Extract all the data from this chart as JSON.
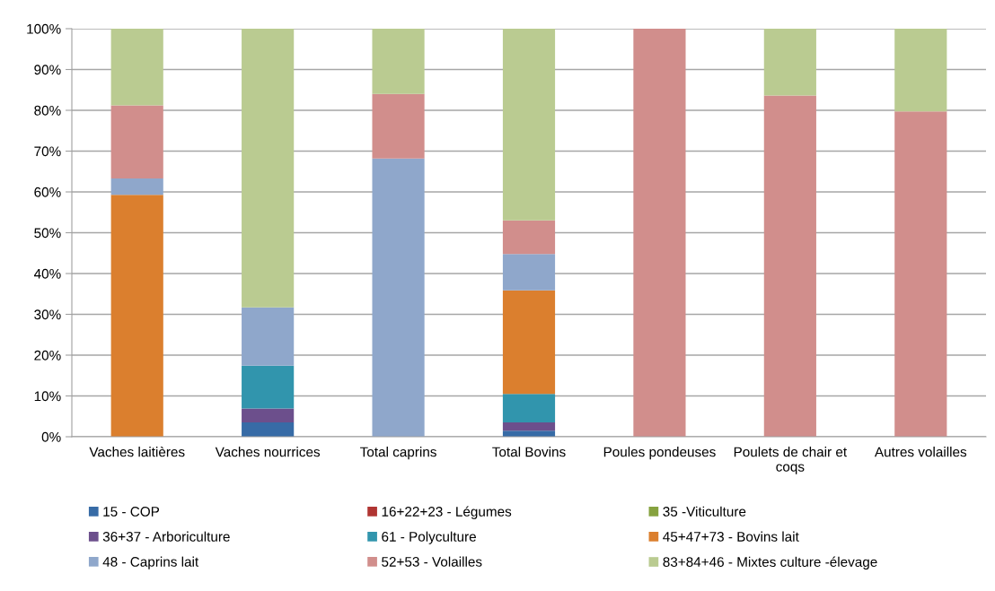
{
  "chart_data": {
    "type": "bar",
    "stacked": true,
    "categories": [
      "Vaches laitières",
      "Vaches nourrices",
      "Total caprins",
      "Total Bovins",
      "Poules pondeuses",
      "Poulets de chair et\ncoqs",
      "Autres volailles"
    ],
    "series": [
      {
        "name": "15 - COP",
        "color": "#376ba6",
        "values": [
          0,
          3.5,
          0,
          1.5,
          0,
          0,
          0
        ]
      },
      {
        "name": "16+22+23 - Légumes",
        "color": "#b03532",
        "values": [
          0,
          0,
          0,
          0,
          0,
          0,
          0
        ]
      },
      {
        "name": "35 -Viticulture",
        "color": "#86a23f",
        "values": [
          0,
          0,
          0,
          0,
          0,
          0,
          0
        ]
      },
      {
        "name": "36+37 - Arboriculture",
        "color": "#6c4f8c",
        "values": [
          0,
          3.4,
          0,
          2.0,
          0,
          0,
          0
        ]
      },
      {
        "name": "61 - Polyculture",
        "color": "#3195ad",
        "values": [
          0,
          10.5,
          0,
          7.0,
          0,
          0,
          0
        ]
      },
      {
        "name": "45+47+73 - Bovins lait",
        "color": "#db7f2e",
        "values": [
          59.3,
          0,
          0,
          25.4,
          0,
          0,
          0
        ]
      },
      {
        "name": "48 - Caprins lait",
        "color": "#8fa7cb",
        "values": [
          4.0,
          14.3,
          68.2,
          8.9,
          0,
          0,
          0
        ]
      },
      {
        "name": "52+53 - Volailles",
        "color": "#d18e8c",
        "values": [
          17.9,
          0,
          15.8,
          8.2,
          100,
          83.6,
          79.7
        ]
      },
      {
        "name": "83+84+46 - Mixtes culture -élevage",
        "color": "#bacb91",
        "values": [
          18.8,
          68.3,
          16.0,
          47.0,
          0,
          16.4,
          20.3
        ]
      }
    ],
    "ylim": [
      0,
      100
    ],
    "yticks": [
      {
        "value": 0,
        "label": "0%"
      },
      {
        "value": 10,
        "label": "10%"
      },
      {
        "value": 20,
        "label": "20%"
      },
      {
        "value": 30,
        "label": "30%"
      },
      {
        "value": 40,
        "label": "40%"
      },
      {
        "value": 50,
        "label": "50%"
      },
      {
        "value": 60,
        "label": "60%"
      },
      {
        "value": 70,
        "label": "70%"
      },
      {
        "value": 80,
        "label": "80%"
      },
      {
        "value": 90,
        "label": "90%"
      },
      {
        "value": 100,
        "label": "100%"
      }
    ],
    "grid": "y",
    "legend": "bottom"
  }
}
